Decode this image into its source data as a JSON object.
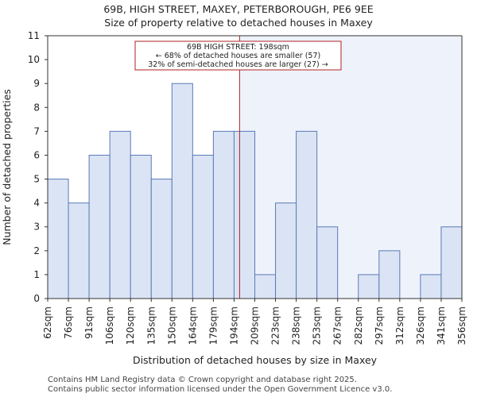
{
  "title_line1": "69B, HIGH STREET, MAXEY, PETERBOROUGH, PE6 9EE",
  "title_line2": "Size of property relative to detached houses in Maxey",
  "footer_line1": "Contains HM Land Registry data © Crown copyright and database right 2025.",
  "footer_line2": "Contains public sector information licensed under the Open Government Licence v3.0.",
  "chart_data": {
    "type": "bar",
    "xlabel": "Distribution of detached houses by size in Maxey",
    "ylabel": "Number of detached properties",
    "ylim": [
      0,
      11
    ],
    "yticks": [
      0,
      1,
      2,
      3,
      4,
      5,
      6,
      7,
      8,
      9,
      10,
      11
    ],
    "bin_edges": [
      "62sqm",
      "76sqm",
      "91sqm",
      "106sqm",
      "120sqm",
      "135sqm",
      "150sqm",
      "164sqm",
      "179sqm",
      "194sqm",
      "209sqm",
      "223sqm",
      "238sqm",
      "253sqm",
      "267sqm",
      "282sqm",
      "297sqm",
      "312sqm",
      "326sqm",
      "341sqm",
      "356sqm"
    ],
    "values": [
      5,
      4,
      6,
      7,
      6,
      5,
      9,
      6,
      7,
      7,
      1,
      4,
      7,
      3,
      0,
      1,
      2,
      0,
      1,
      3
    ],
    "marker_value": 198,
    "annotation": [
      "69B HIGH STREET: 198sqm",
      "← 68% of detached houses are smaller (57)",
      "32% of semi-detached houses are larger (27) →"
    ],
    "bar_color": "#dbe4f4",
    "bar_edge": "#5a7ab8",
    "shade_color": "#eef2fb",
    "marker_color": "#b22222",
    "grid": false
  }
}
